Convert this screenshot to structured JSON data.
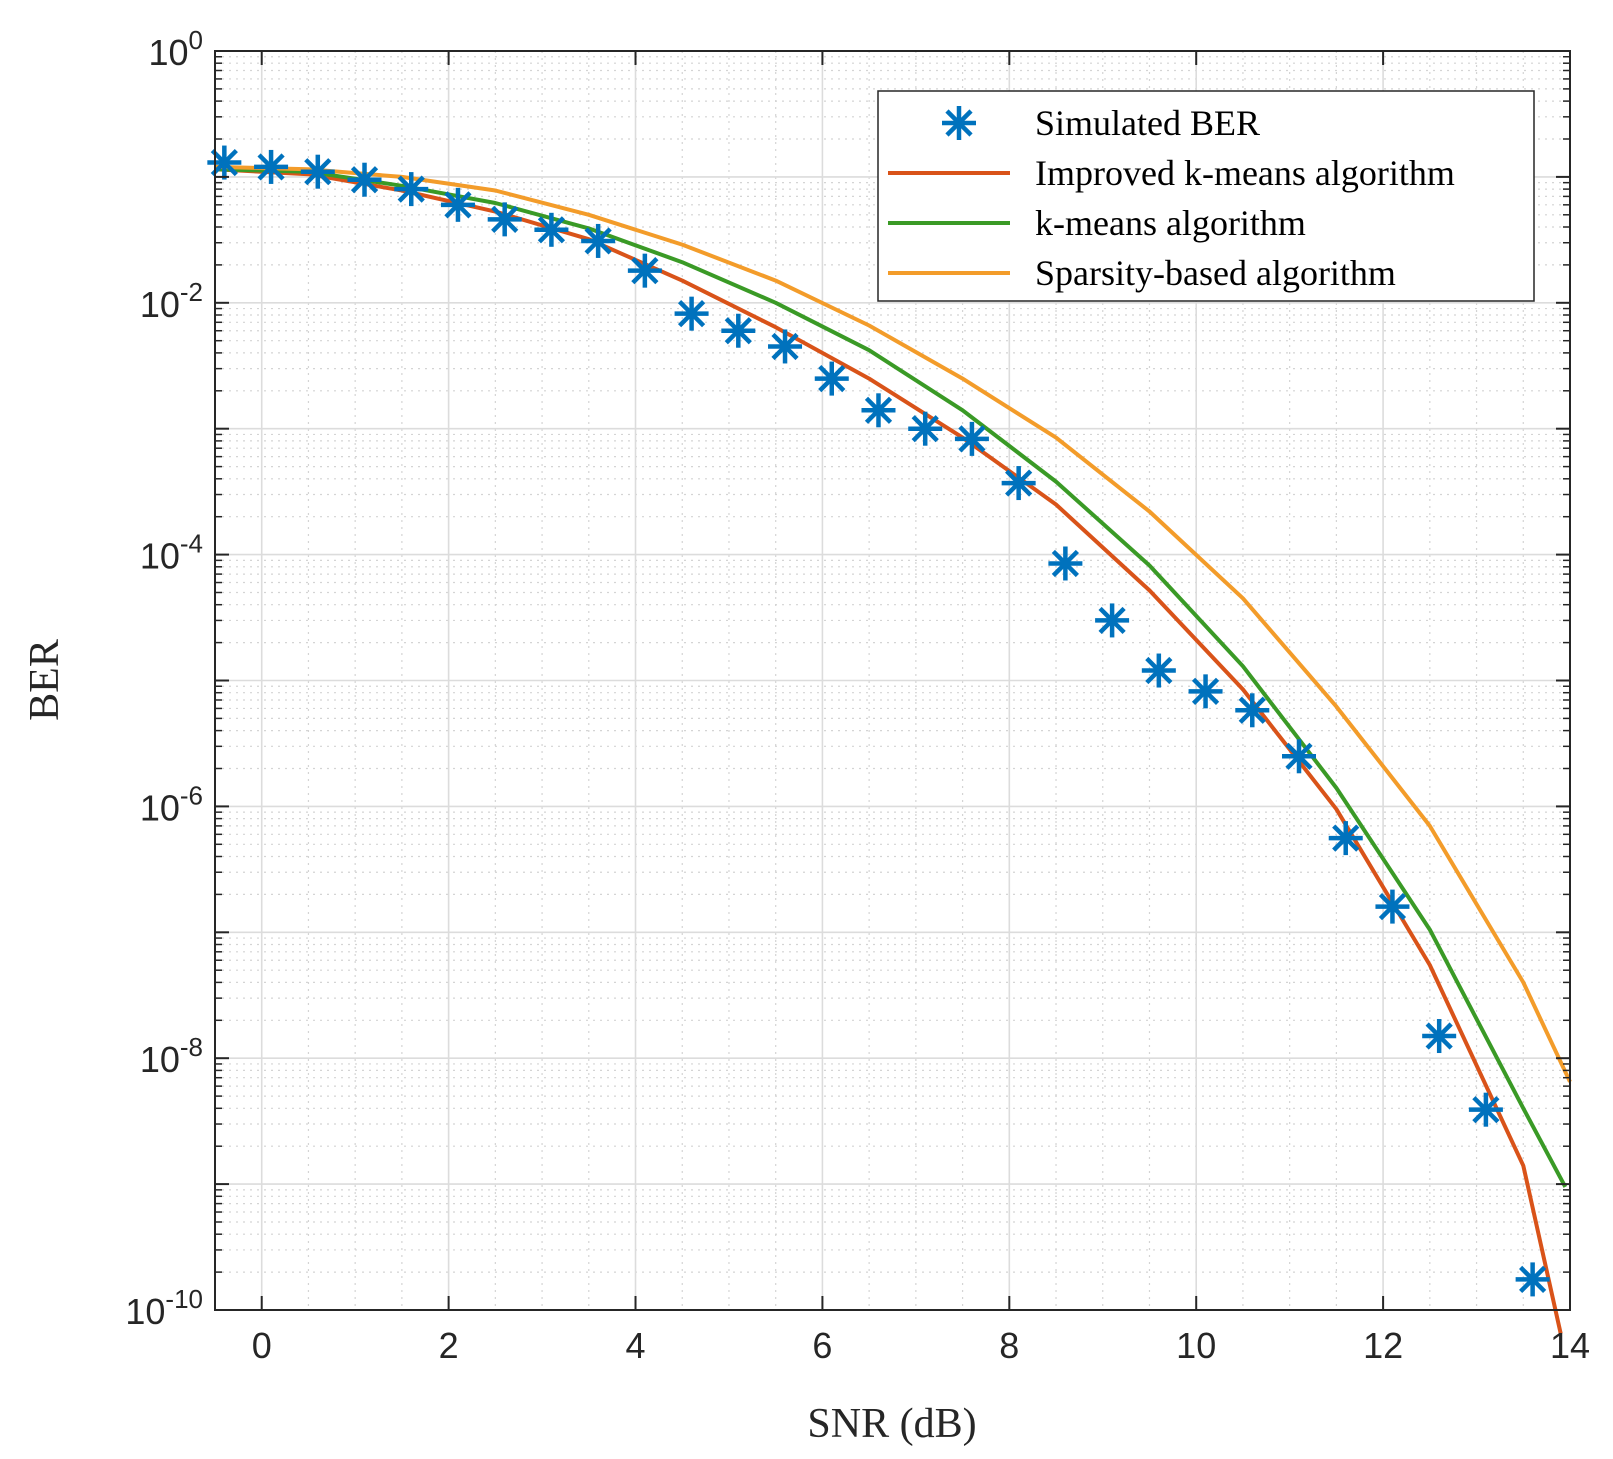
{
  "chart_data": {
    "type": "line",
    "title": "",
    "xlabel": "SNR (dB)",
    "ylabel": "BER",
    "xlim": [
      -0.5,
      14
    ],
    "ylim_log10": [
      -10,
      0
    ],
    "yscale": "log",
    "grid": true,
    "minor_grid": true,
    "legend_position": "top-right",
    "x_ticks": [
      0,
      2,
      4,
      6,
      8,
      10,
      12,
      14
    ],
    "x_tick_labels": [
      "0",
      "2",
      "4",
      "6",
      "8",
      "10",
      "12",
      "14"
    ],
    "y_tick_exponents": [
      0,
      -2,
      -4,
      -6,
      -8,
      -10
    ],
    "y_tick_base": "10",
    "series": [
      {
        "name": "Simulated BER",
        "style": "markers",
        "marker": "asterisk",
        "color": "#0072BD",
        "points": [
          [
            -0.4,
            0.13
          ],
          [
            0.1,
            0.12
          ],
          [
            0.6,
            0.11
          ],
          [
            1.1,
            0.095
          ],
          [
            1.6,
            0.08
          ],
          [
            2.1,
            0.06
          ],
          [
            2.6,
            0.046
          ],
          [
            3.1,
            0.038
          ],
          [
            3.6,
            0.031
          ],
          [
            4.1,
            0.018
          ],
          [
            4.6,
            0.0082
          ],
          [
            5.1,
            0.006
          ],
          [
            5.6,
            0.0045
          ],
          [
            6.1,
            0.0025
          ],
          [
            6.6,
            0.0014
          ],
          [
            7.1,
            0.001
          ],
          [
            7.6,
            0.00083
          ],
          [
            8.1,
            0.00037
          ],
          [
            8.6,
            8.5e-05
          ],
          [
            9.1,
            3e-05
          ],
          [
            9.6,
            1.2e-05
          ],
          [
            10.1,
            8.2e-06
          ],
          [
            10.6,
            5.8e-06
          ],
          [
            11.1,
            2.5e-06
          ],
          [
            11.6,
            5.6e-07
          ],
          [
            12.1,
            1.6e-07
          ],
          [
            12.6,
            1.5e-08
          ],
          [
            13.1,
            3.9e-09
          ],
          [
            13.6,
            1.75e-10
          ]
        ]
      },
      {
        "name": "Improved k-means algorithm",
        "style": "line",
        "color": "#D95319",
        "points": [
          [
            -0.5,
            0.115
          ],
          [
            0.5,
            0.105
          ],
          [
            1.5,
            0.078
          ],
          [
            2.5,
            0.053
          ],
          [
            3.5,
            0.032
          ],
          [
            4.5,
            0.015
          ],
          [
            5.5,
            0.0064
          ],
          [
            6.5,
            0.0025
          ],
          [
            7.5,
            0.00085
          ],
          [
            8.5,
            0.00025
          ],
          [
            9.5,
            5.2e-05
          ],
          [
            10.5,
            8.5e-06
          ],
          [
            11.5,
            9.5e-07
          ],
          [
            12.5,
            5.5e-08
          ],
          [
            13.5,
            1.4e-09
          ],
          [
            13.9,
            6.5e-11
          ]
        ]
      },
      {
        "name": "k-means algorithm",
        "style": "line",
        "color": "#3A9A26",
        "points": [
          [
            -0.5,
            0.115
          ],
          [
            0.5,
            0.11
          ],
          [
            1.5,
            0.085
          ],
          [
            2.5,
            0.062
          ],
          [
            3.5,
            0.039
          ],
          [
            4.5,
            0.021
          ],
          [
            5.5,
            0.01
          ],
          [
            6.5,
            0.0042
          ],
          [
            7.5,
            0.0014
          ],
          [
            8.5,
            0.00038
          ],
          [
            9.5,
            8.2e-05
          ],
          [
            10.5,
            1.3e-05
          ],
          [
            11.5,
            1.4e-06
          ],
          [
            12.5,
            1.05e-07
          ],
          [
            13.5,
            4e-09
          ],
          [
            13.95,
            9.5e-10
          ]
        ]
      },
      {
        "name": "Sparsity-based algorithm",
        "style": "line",
        "color": "#F39C2A",
        "points": [
          [
            -0.5,
            0.12
          ],
          [
            0.5,
            0.115
          ],
          [
            1.5,
            0.1
          ],
          [
            2.5,
            0.078
          ],
          [
            3.5,
            0.05
          ],
          [
            4.5,
            0.029
          ],
          [
            5.5,
            0.015
          ],
          [
            6.5,
            0.0066
          ],
          [
            7.5,
            0.0025
          ],
          [
            8.5,
            0.00085
          ],
          [
            9.5,
            0.00022
          ],
          [
            10.5,
            4.5e-05
          ],
          [
            11.5,
            6.2e-06
          ],
          [
            12.5,
            7e-07
          ],
          [
            13.5,
            4e-08
          ],
          [
            14,
            6.5e-09
          ]
        ]
      }
    ]
  }
}
